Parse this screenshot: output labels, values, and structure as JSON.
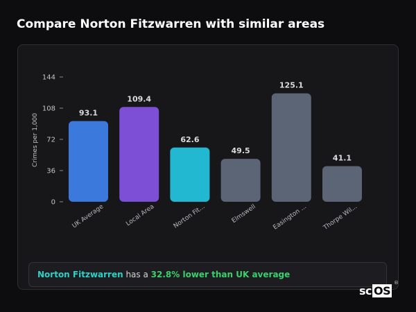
{
  "page": {
    "title": "Compare Norton Fitzwarren with similar areas"
  },
  "summary": {
    "area": "Norton Fitzwarren",
    "middle": " has a ",
    "comparison": "32.8% lower than UK average"
  },
  "logo": {
    "text_sc": "sc",
    "text_os": "OS",
    "mark": "®"
  },
  "colors": {
    "uk": "#3b79dd",
    "local": "#7d4fd6",
    "area": "#22b8d1",
    "other": "#5b6576"
  },
  "chart_data": {
    "type": "bar",
    "title": "",
    "ylabel": "Crimes per 1,000",
    "xlabel": "",
    "ylim": [
      0,
      144
    ],
    "yticks": [
      0,
      36,
      72,
      108,
      144
    ],
    "categories": [
      "UK Average",
      "Local Area",
      "Norton Fit...",
      "Elmswell",
      "Easington ...",
      "Thorpe Wil..."
    ],
    "values": [
      93.1,
      109.4,
      62.6,
      49.5,
      125.1,
      41.1
    ],
    "value_labels": [
      "93.1",
      "109.4",
      "62.6",
      "49.5",
      "125.1",
      "41.1"
    ],
    "bar_colors": [
      "#3b79dd",
      "#7d4fd6",
      "#22b8d1",
      "#5b6576",
      "#5b6576",
      "#5b6576"
    ],
    "grid": false,
    "legend": "none"
  }
}
